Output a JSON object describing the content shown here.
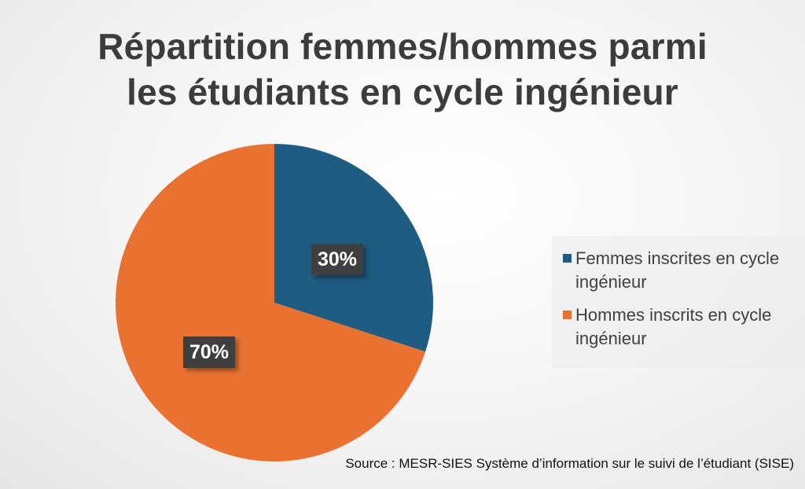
{
  "chart_data": {
    "type": "pie",
    "title": [
      "Répartition femmes/hommes parmi",
      "les étudiants en cycle ingénieur"
    ],
    "slices": [
      {
        "name": "Femmes inscrites en cycle ingénieur",
        "value": 30,
        "label": "30%",
        "color": "#1f5c82"
      },
      {
        "name": "Hommes inscrits en cycle ingénieur",
        "value": 70,
        "label": "70%",
        "color": "#e97231"
      }
    ],
    "legend_position": "right",
    "legend": [
      {
        "lines": [
          "Femmes inscrites en cycle",
          "ingénieur"
        ],
        "color": "#1f5c82"
      },
      {
        "lines": [
          "Hommes inscrits en cycle",
          "ingénieur"
        ],
        "color": "#e97231"
      }
    ]
  },
  "source": "Source : MESR-SIES Système d’information sur le suivi de l’étudiant (SISE)"
}
